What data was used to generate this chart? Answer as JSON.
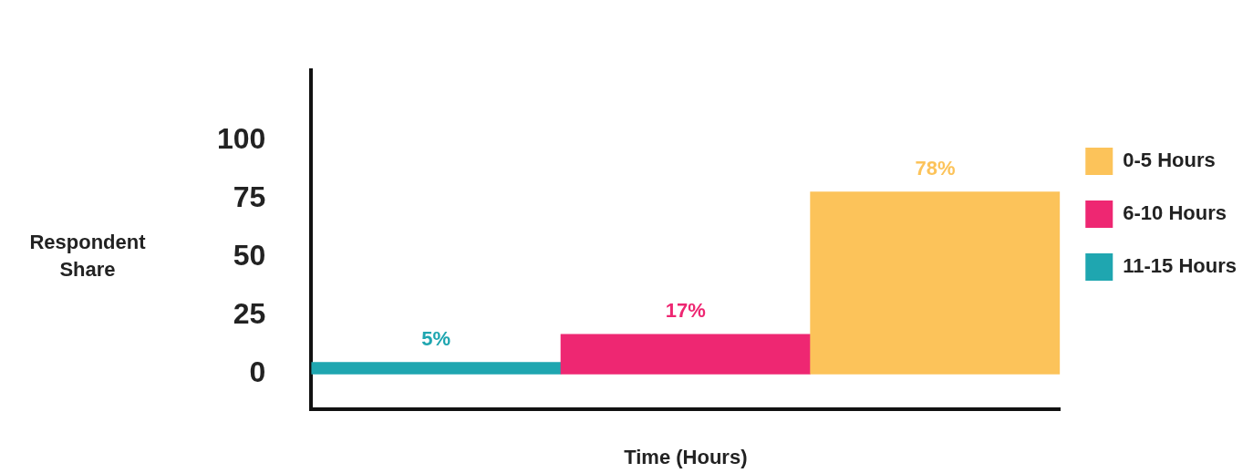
{
  "chart_data": {
    "type": "bar",
    "xlabel": "Time (Hours)",
    "ylabel": "Respondent Share",
    "categories": [
      null,
      null,
      null
    ],
    "series": [
      {
        "name": "0-5 Hours",
        "color": "#fcc35a",
        "values": [
          null,
          null,
          78
        ],
        "value_labels": [
          null,
          null,
          "78%"
        ]
      },
      {
        "name": "6-10 Hours",
        "color": "#ee2772",
        "values": [
          null,
          17,
          null
        ],
        "value_labels": [
          null,
          "17%",
          null
        ]
      },
      {
        "name": "11-15 Hours",
        "color": "#1fa6b0",
        "values": [
          5,
          null,
          null
        ],
        "value_labels": [
          "5%",
          null,
          null
        ]
      }
    ],
    "ylim": [
      -15,
      130
    ],
    "yticks": [
      0,
      25,
      50,
      75,
      100
    ],
    "tick_labels": "y",
    "legend": "right",
    "grid": false
  }
}
